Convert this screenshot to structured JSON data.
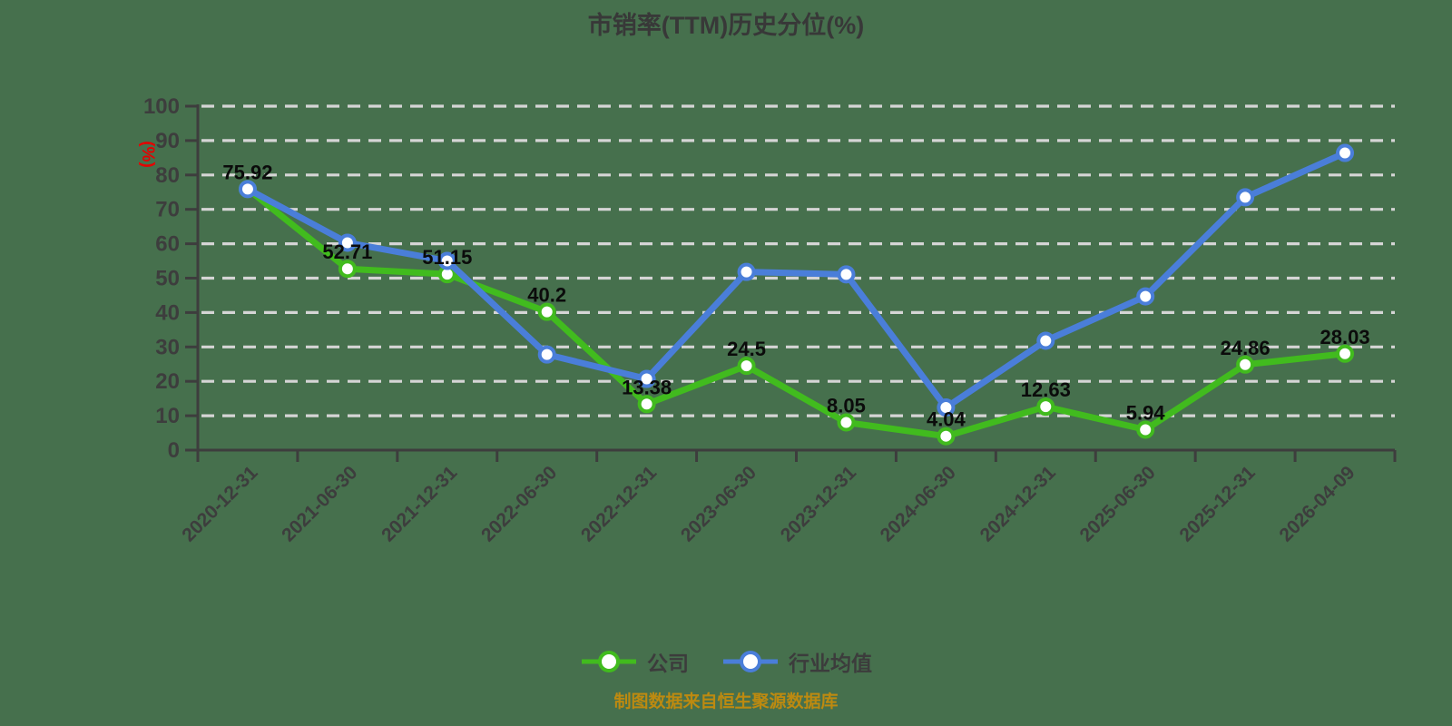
{
  "title": "市销率(TTM)历史分位(%)",
  "y_axis_unit": "(%)",
  "source_note": "制图数据来自恒生聚源数据库",
  "colors": {
    "background": "#46704d",
    "company_green": "#41bb1e",
    "industry_blue": "#4a7ed9",
    "grid": "#d5d5d5",
    "axis": "#3d3d3d",
    "data_label": "#0b0b0b",
    "unit_red": "#e60000",
    "source_orange": "#bd8a10",
    "marker_fill": "#ffffff"
  },
  "legend": {
    "items": [
      {
        "label": "公司",
        "color": "#41bb1e"
      },
      {
        "label": "行业均值",
        "color": "#4a7ed9"
      }
    ]
  },
  "chart_data": {
    "type": "line",
    "title": "市销率(TTM)历史分位(%)",
    "ylabel": "(%)",
    "ylim": [
      0,
      100
    ],
    "y_tick_step": 10,
    "grid": "horizontal-dashed",
    "legend_position": "bottom",
    "marker": "circle-white-fill",
    "categories": [
      "2020-12-31",
      "2021-06-30",
      "2021-12-31",
      "2022-06-30",
      "2022-12-31",
      "2023-06-30",
      "2023-12-31",
      "2024-06-30",
      "2024-12-31",
      "2025-06-30",
      "2025-12-31",
      "2026-04-09"
    ],
    "series": [
      {
        "name": "公司",
        "color": "#41bb1e",
        "values": [
          75.92,
          52.71,
          51.15,
          40.2,
          13.38,
          24.5,
          8.05,
          4.04,
          12.63,
          5.94,
          24.86,
          28.03
        ],
        "point_labels": [
          "75.92",
          "52.71",
          "51.15",
          "40.2",
          "13.38",
          "24.5",
          "8.05",
          "4.04",
          "12.63",
          "5.94",
          "24.86",
          "28.03"
        ]
      },
      {
        "name": "行业均值",
        "color": "#4a7ed9",
        "values": [
          75.9,
          60.3,
          55.0,
          27.8,
          20.7,
          51.8,
          51.1,
          12.4,
          31.8,
          44.7,
          73.5,
          86.4
        ],
        "point_labels": []
      }
    ]
  }
}
